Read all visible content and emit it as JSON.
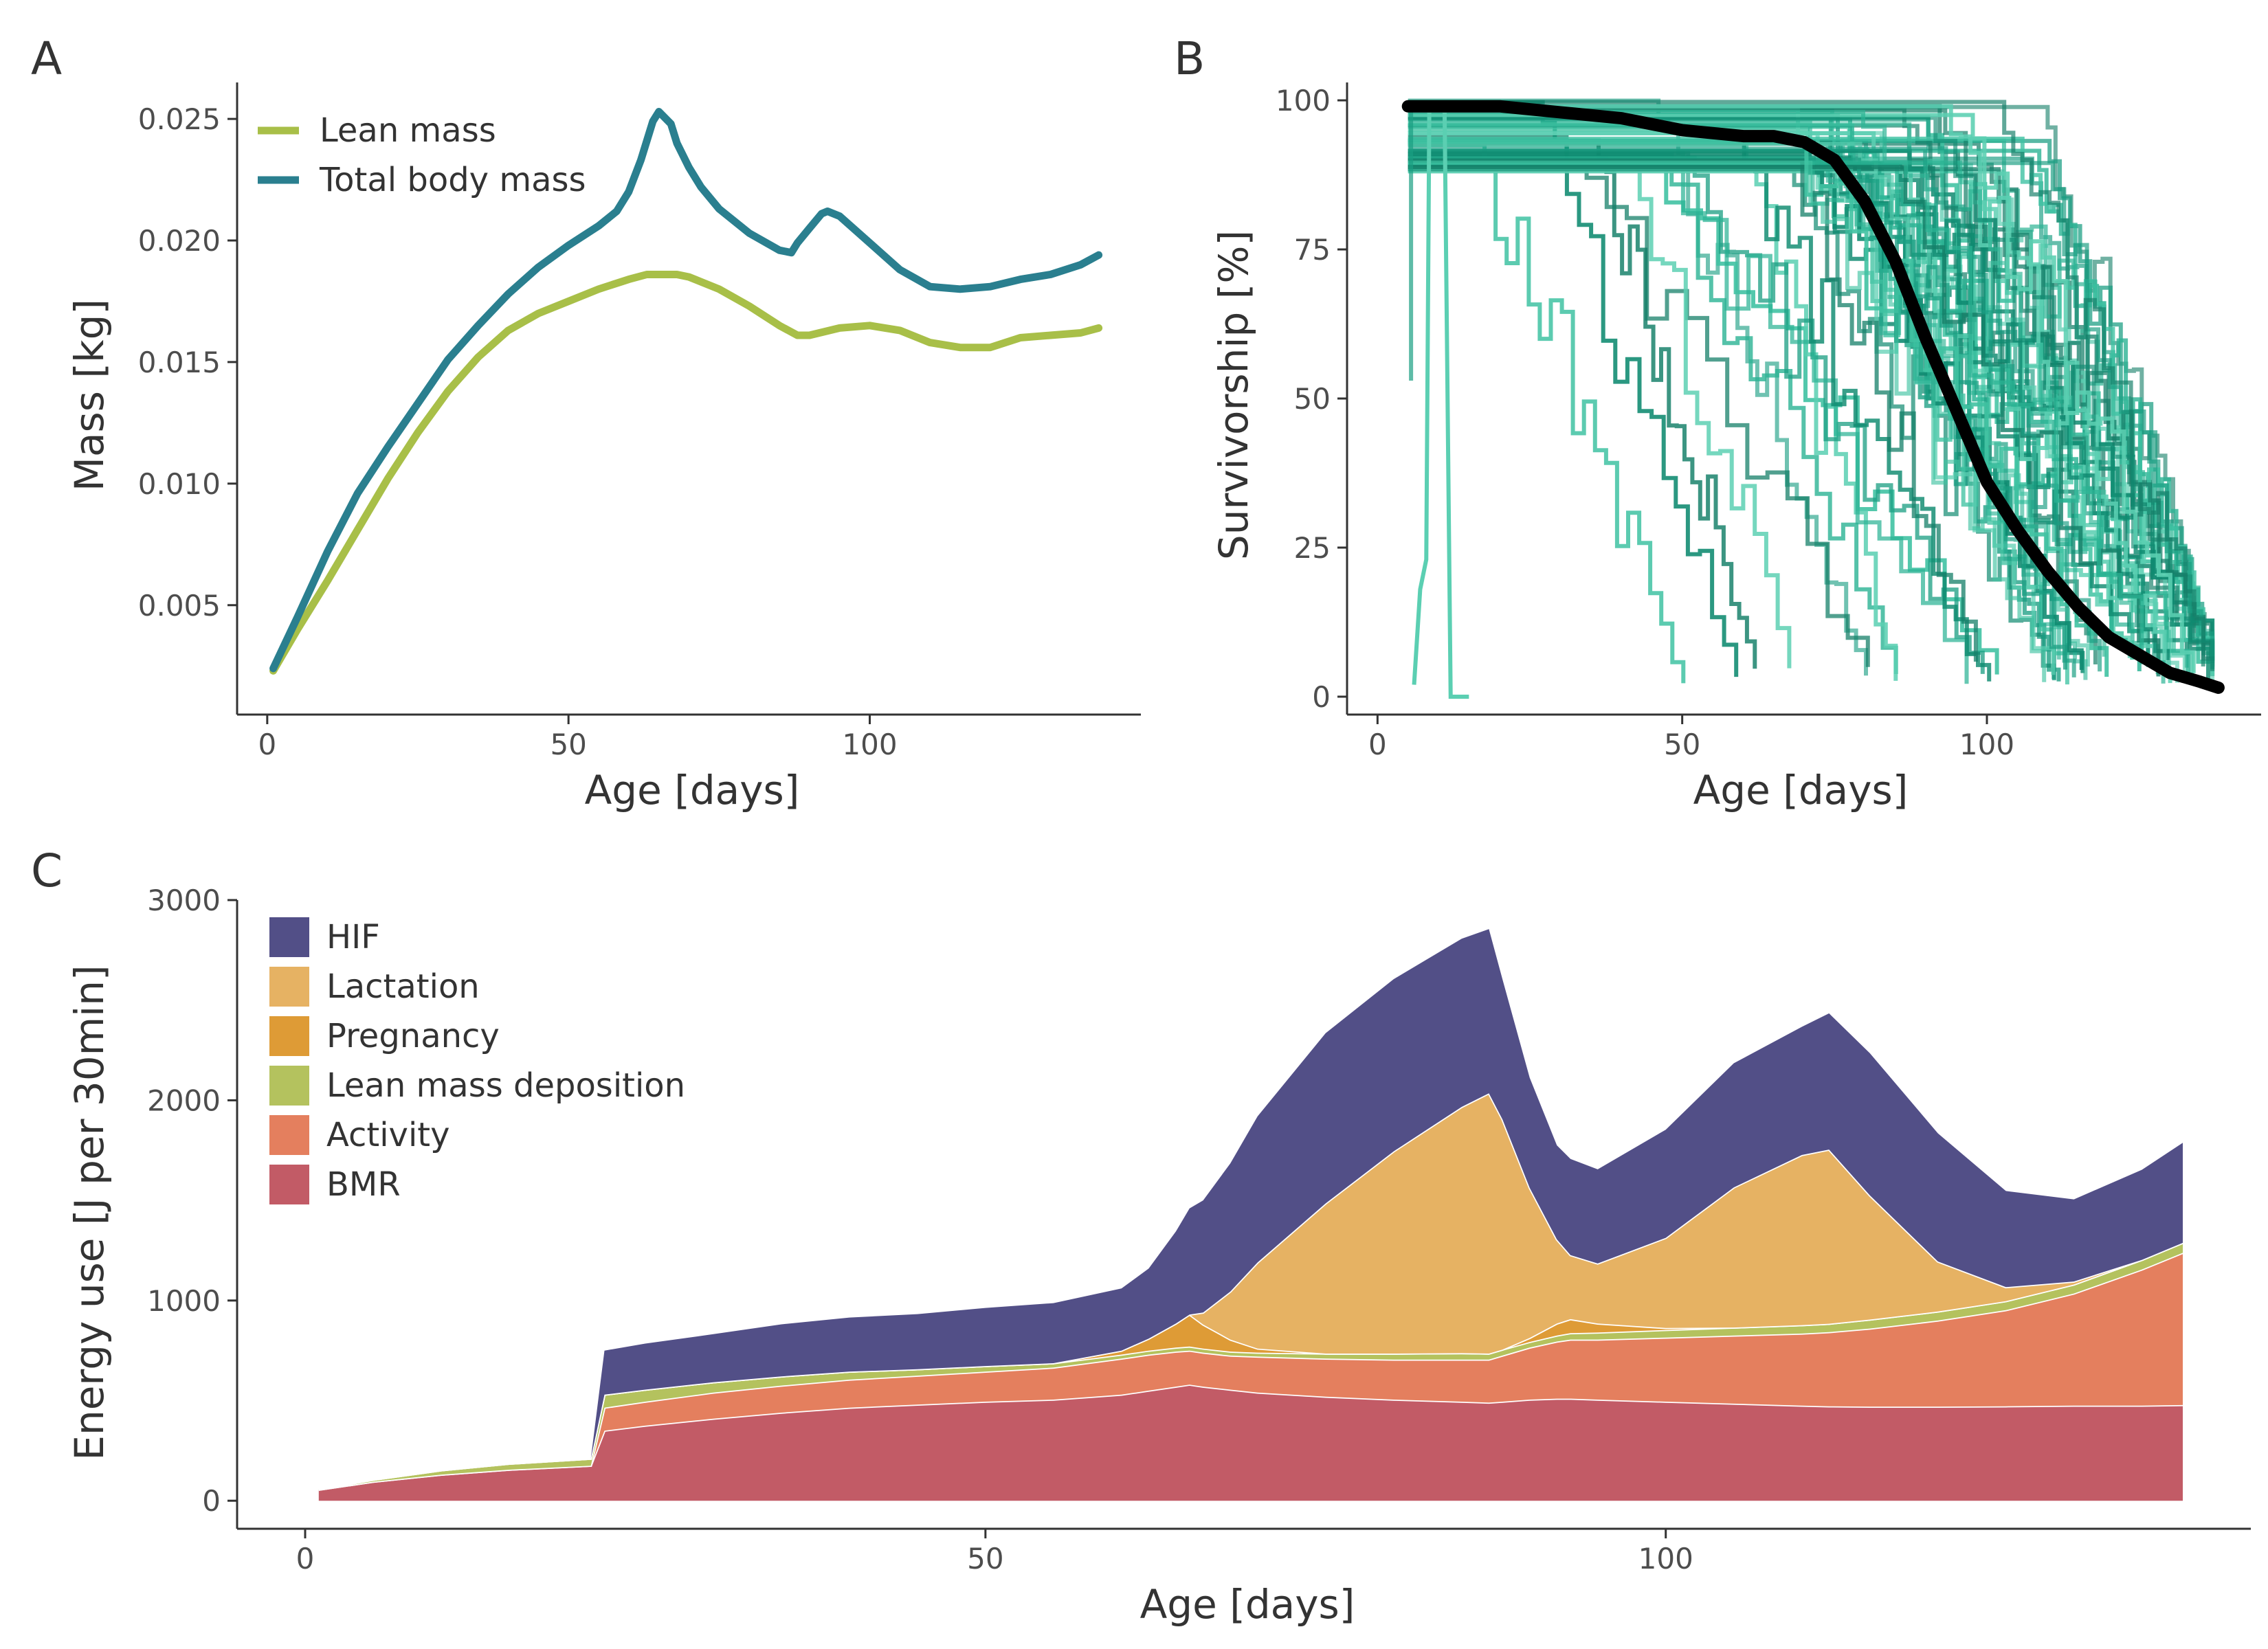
{
  "panels": {
    "A": {
      "label": "A",
      "chart_data": {
        "type": "line",
        "xlabel": "Age [days]",
        "ylabel": "Mass [kg]",
        "xlim": [
          -5,
          145
        ],
        "ylim": [
          0.0005,
          0.0265
        ],
        "xticks": [
          0,
          50,
          100
        ],
        "xtick_labels": [
          "0",
          "50",
          "100"
        ],
        "yticks": [
          0.005,
          0.01,
          0.015,
          0.02,
          0.025
        ],
        "ytick_labels": [
          "0.005",
          "0.010",
          "0.015",
          "0.020",
          "0.025"
        ],
        "legend_position": "top-left",
        "series": [
          {
            "name": "Lean mass",
            "color": "#a8bf48",
            "x": [
              1,
              5,
              10,
              15,
              20,
              25,
              30,
              35,
              40,
              45,
              50,
              55,
              60,
              63,
              65,
              68,
              70,
              75,
              80,
              85,
              88,
              90,
              95,
              100,
              105,
              110,
              115,
              120,
              125,
              130,
              135,
              138
            ],
            "y": [
              0.0023,
              0.004,
              0.006,
              0.0081,
              0.0102,
              0.0121,
              0.0138,
              0.0152,
              0.0163,
              0.017,
              0.0175,
              0.018,
              0.0184,
              0.0186,
              0.0186,
              0.0186,
              0.0185,
              0.018,
              0.0173,
              0.0165,
              0.0161,
              0.0161,
              0.0164,
              0.0165,
              0.0163,
              0.0158,
              0.0156,
              0.0156,
              0.016,
              0.0161,
              0.0162,
              0.0164
            ]
          },
          {
            "name": "Total body mass",
            "color": "#2a7f8f",
            "x": [
              1,
              5,
              10,
              15,
              20,
              25,
              30,
              35,
              40,
              45,
              50,
              55,
              58,
              60,
              62,
              64,
              65,
              67,
              68,
              70,
              72,
              75,
              80,
              85,
              87,
              88,
              90,
              92,
              93,
              95,
              100,
              105,
              110,
              115,
              120,
              125,
              130,
              135,
              138
            ],
            "y": [
              0.0024,
              0.0045,
              0.0072,
              0.0096,
              0.0115,
              0.0133,
              0.0151,
              0.0165,
              0.0178,
              0.0189,
              0.0198,
              0.0206,
              0.0212,
              0.022,
              0.0233,
              0.0249,
              0.0253,
              0.0248,
              0.024,
              0.023,
              0.0222,
              0.0213,
              0.0203,
              0.0196,
              0.0195,
              0.0199,
              0.0205,
              0.0211,
              0.0212,
              0.021,
              0.0199,
              0.0188,
              0.0181,
              0.018,
              0.0181,
              0.0184,
              0.0186,
              0.019,
              0.0194
            ]
          }
        ]
      }
    },
    "B": {
      "label": "B",
      "chart_data": {
        "type": "line",
        "xlabel": "Age [days]",
        "ylabel": "Survivorship [%]",
        "xlim": [
          -5,
          145
        ],
        "ylim": [
          -3,
          103
        ],
        "xticks": [
          0,
          50,
          100
        ],
        "xtick_labels": [
          "0",
          "50",
          "100"
        ],
        "yticks": [
          0,
          25,
          50,
          75,
          100
        ],
        "ytick_labels": [
          "0",
          "25",
          "50",
          "75",
          "100"
        ],
        "individual_runs_color": "#1a9e82",
        "mean_line_color": "#000000",
        "mean_line": {
          "x": [
            5,
            10,
            20,
            30,
            40,
            50,
            60,
            65,
            70,
            75,
            80,
            85,
            90,
            95,
            100,
            105,
            110,
            115,
            120,
            125,
            130,
            135,
            138
          ],
          "y": [
            99,
            99,
            99,
            98,
            97,
            95,
            94,
            94,
            93,
            90,
            83,
            73,
            60,
            48,
            36,
            28,
            21,
            15,
            10,
            7,
            4,
            2.5,
            1.5
          ]
        }
      }
    },
    "C": {
      "label": "C",
      "chart_data": {
        "type": "area",
        "stacked": true,
        "xlabel": "Age [days]",
        "ylabel": "Energy use [J per 30min]",
        "xlim": [
          -5,
          143
        ],
        "ylim": [
          -140,
          3000
        ],
        "xticks": [
          0,
          50,
          100
        ],
        "xtick_labels": [
          "0",
          "50",
          "100"
        ],
        "yticks": [
          0,
          1000,
          2000,
          3000
        ],
        "ytick_labels": [
          "0",
          "1000",
          "2000",
          "3000"
        ],
        "legend_position": "top-left",
        "x": [
          1,
          5,
          10,
          15,
          21,
          22,
          25,
          30,
          35,
          40,
          45,
          50,
          55,
          60,
          62,
          64,
          65,
          66,
          68,
          70,
          75,
          80,
          85,
          87,
          88,
          90,
          92,
          93,
          95,
          100,
          105,
          110,
          112,
          115,
          120,
          125,
          130,
          135,
          138
        ],
        "series": [
          {
            "name": "BMR",
            "color": "#c25b66",
            "values": [
              55,
              95,
              130,
              155,
              175,
              350,
              375,
              410,
              440,
              465,
              480,
              495,
              505,
              530,
              550,
              570,
              580,
              570,
              555,
              540,
              520,
              505,
              495,
              490,
              495,
              505,
              510,
              510,
              505,
              495,
              485,
              475,
              472,
              470,
              470,
              472,
              475,
              475,
              478
            ]
          },
          {
            "name": "Activity",
            "color": "#e47f5e",
            "values": [
              0,
              0,
              0,
              0,
              0,
              115,
              120,
              130,
              135,
              140,
              145,
              150,
              160,
              180,
              180,
              175,
              170,
              170,
              170,
              180,
              190,
              200,
              210,
              215,
              230,
              260,
              285,
              295,
              300,
              320,
              340,
              360,
              370,
              390,
              430,
              480,
              560,
              680,
              760
            ]
          },
          {
            "name": "Lean mass deposition",
            "color": "#b4c25e",
            "values": [
              2,
              10,
              22,
              30,
              35,
              65,
              60,
              52,
              46,
              40,
              32,
              28,
              22,
              20,
              20,
              20,
              20,
              20,
              20,
              20,
              25,
              30,
              32,
              30,
              30,
              28,
              30,
              32,
              35,
              38,
              40,
              42,
              42,
              45,
              45,
              45,
              45,
              48,
              50
            ]
          },
          {
            "name": "Pregnancy",
            "color": "#de9b36",
            "values": [
              0,
              0,
              0,
              0,
              0,
              0,
              0,
              0,
              0,
              0,
              0,
              0,
              0,
              20,
              60,
              120,
              160,
              120,
              60,
              20,
              0,
              0,
              0,
              0,
              0,
              20,
              60,
              70,
              45,
              10,
              0,
              0,
              0,
              0,
              0,
              0,
              0,
              0,
              0
            ]
          },
          {
            "name": "Lactation",
            "color": "#e6b263",
            "values": [
              0,
              0,
              0,
              0,
              0,
              0,
              0,
              0,
              0,
              0,
              0,
              0,
              0,
              0,
              0,
              0,
              0,
              60,
              240,
              430,
              750,
              1010,
              1230,
              1300,
              1150,
              750,
              420,
              320,
              300,
              450,
              700,
              850,
              870,
              620,
              250,
              70,
              15,
              0,
              0
            ]
          },
          {
            "name": "HIF",
            "color": "#524f87",
            "values": [
              0,
              0,
              0,
              0,
              0,
              220,
              230,
              240,
              260,
              270,
              275,
              290,
              300,
              310,
              350,
              460,
              530,
              560,
              640,
              730,
              850,
              860,
              840,
              820,
              700,
              550,
              470,
              480,
              470,
              540,
              620,
              640,
              680,
              710,
              640,
              480,
              410,
              450,
              500
            ]
          }
        ]
      }
    }
  }
}
